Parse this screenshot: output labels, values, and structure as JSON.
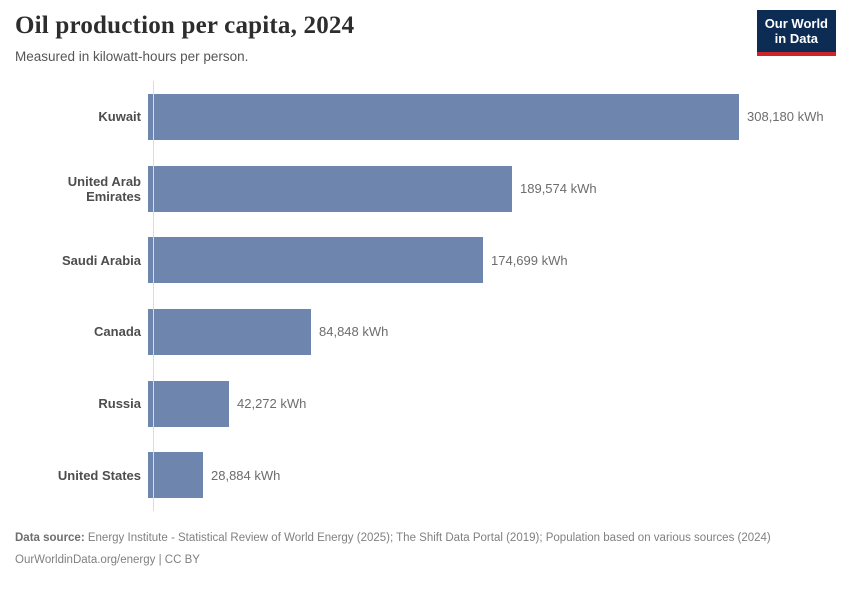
{
  "header": {
    "title": "Oil production per capita, 2024",
    "subtitle": "Measured in kilowatt-hours per person."
  },
  "logo": {
    "line1": "Our World",
    "line2": "in Data",
    "bg_color": "#0c2c53",
    "accent_color": "#cc2428"
  },
  "chart_data": {
    "type": "bar",
    "orientation": "horizontal",
    "title": "Oil production per capita, 2024",
    "xlabel": "",
    "ylabel": "",
    "unit": "kWh",
    "grid": false,
    "xlim": [
      0,
      308180
    ],
    "bar_color": "#6e85ad",
    "categories": [
      "Kuwait",
      "United Arab Emirates",
      "Saudi Arabia",
      "Canada",
      "Russia",
      "United States"
    ],
    "values": [
      308180,
      189574,
      174699,
      84848,
      42272,
      28884
    ],
    "value_labels": [
      "308,180 kWh",
      "189,574 kWh",
      "174,699 kWh",
      "84,848 kWh",
      "42,272 kWh",
      "28,884 kWh"
    ]
  },
  "footer": {
    "datasource_label": "Data source:",
    "datasource_text": " Energy Institute - Statistical Review of World Energy (2025); The Shift Data Portal (2019); Population based on various sources (2024)",
    "citation": "OurWorldinData.org/energy | CC BY"
  }
}
